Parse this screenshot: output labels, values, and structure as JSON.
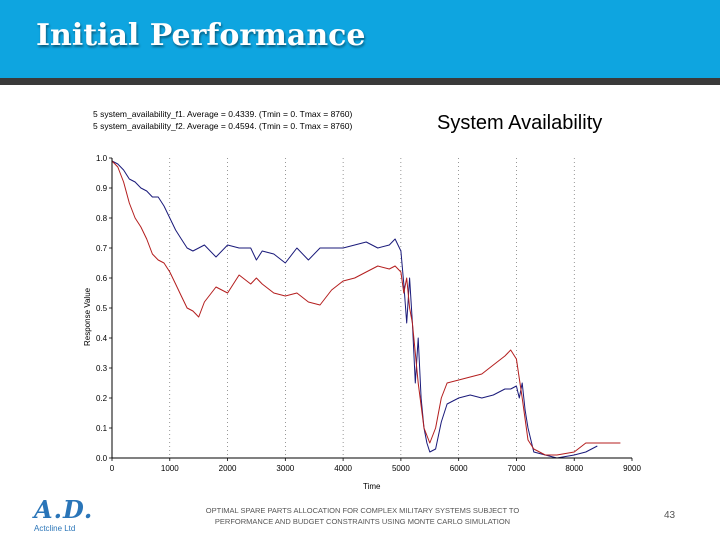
{
  "slide": {
    "title": "Initial Performance",
    "footer_line1": "OPTIMAL SPARE PARTS ALLOCATION FOR COMPLEX MILITARY SYSTEMS SUBJECT TO",
    "footer_line2": "PERFORMANCE AND BUDGET CONSTRAINTS USING MONTE CARLO SIMULATION",
    "page_number": "43",
    "logo_mark": "A.D.",
    "logo_sub": "Actcline Ltd"
  },
  "colors": {
    "header": "#0ea5e0",
    "series1": "#1a1a7a",
    "series2": "#b41e1e"
  },
  "chart_data": {
    "type": "line",
    "title": "System Availability",
    "xlabel": "Time",
    "ylabel": "Response Value",
    "xlim": [
      0,
      9000
    ],
    "ylim": [
      0,
      1.0
    ],
    "xticks": [
      0,
      1000,
      2000,
      3000,
      4000,
      5000,
      6000,
      7000,
      8000,
      9000
    ],
    "yticks": [
      0.0,
      0.1,
      0.2,
      0.3,
      0.4,
      0.5,
      0.6,
      0.7,
      0.8,
      0.9,
      1.0
    ],
    "legend": [
      "5 system_availability_f1. Average = 0.4339. (Tmin = 0. Tmax = 8760)",
      "5 system_availability_f2. Average = 0.4594. (Tmin = 0. Tmax = 8760)"
    ],
    "series": [
      {
        "name": "system_availability_f1",
        "color": "#1a1a7a",
        "x": [
          0,
          100,
          200,
          300,
          400,
          500,
          600,
          700,
          800,
          900,
          1000,
          1100,
          1200,
          1300,
          1400,
          1500,
          1600,
          1800,
          2000,
          2200,
          2400,
          2500,
          2600,
          2800,
          3000,
          3200,
          3400,
          3600,
          3800,
          4000,
          4200,
          4400,
          4600,
          4800,
          4900,
          5000,
          5050,
          5100,
          5150,
          5200,
          5250,
          5300,
          5350,
          5400,
          5450,
          5500,
          5600,
          5700,
          5800,
          6000,
          6200,
          6400,
          6600,
          6800,
          6900,
          7000,
          7050,
          7100,
          7150,
          7200,
          7300,
          7500,
          7700,
          8000,
          8200,
          8400
        ],
        "values": [
          0.99,
          0.98,
          0.96,
          0.93,
          0.92,
          0.9,
          0.89,
          0.87,
          0.87,
          0.84,
          0.8,
          0.76,
          0.73,
          0.7,
          0.69,
          0.7,
          0.71,
          0.67,
          0.71,
          0.7,
          0.7,
          0.66,
          0.69,
          0.68,
          0.65,
          0.7,
          0.66,
          0.7,
          0.7,
          0.7,
          0.71,
          0.72,
          0.7,
          0.71,
          0.73,
          0.69,
          0.58,
          0.45,
          0.6,
          0.45,
          0.25,
          0.4,
          0.2,
          0.1,
          0.05,
          0.02,
          0.03,
          0.12,
          0.18,
          0.2,
          0.21,
          0.2,
          0.21,
          0.23,
          0.23,
          0.24,
          0.2,
          0.25,
          0.16,
          0.1,
          0.02,
          0.01,
          0.0,
          0.01,
          0.02,
          0.04
        ]
      },
      {
        "name": "system_availability_f2",
        "color": "#b41e1e",
        "x": [
          0,
          100,
          200,
          300,
          400,
          500,
          600,
          700,
          800,
          900,
          1000,
          1100,
          1200,
          1300,
          1400,
          1500,
          1600,
          1800,
          2000,
          2200,
          2400,
          2500,
          2600,
          2800,
          3000,
          3200,
          3400,
          3600,
          3800,
          4000,
          4200,
          4400,
          4600,
          4800,
          4900,
          5000,
          5050,
          5100,
          5150,
          5200,
          5300,
          5400,
          5500,
          5600,
          5700,
          5800,
          6000,
          6200,
          6400,
          6600,
          6800,
          6900,
          7000,
          7100,
          7200,
          7300,
          7500,
          7700,
          8000,
          8200,
          8400,
          8600,
          8800
        ],
        "values": [
          0.99,
          0.97,
          0.92,
          0.85,
          0.8,
          0.77,
          0.73,
          0.68,
          0.66,
          0.65,
          0.62,
          0.58,
          0.54,
          0.5,
          0.49,
          0.47,
          0.52,
          0.57,
          0.55,
          0.61,
          0.58,
          0.6,
          0.58,
          0.55,
          0.54,
          0.55,
          0.52,
          0.51,
          0.56,
          0.59,
          0.6,
          0.62,
          0.64,
          0.63,
          0.64,
          0.62,
          0.55,
          0.6,
          0.5,
          0.45,
          0.25,
          0.1,
          0.05,
          0.1,
          0.2,
          0.25,
          0.26,
          0.27,
          0.28,
          0.31,
          0.34,
          0.36,
          0.33,
          0.2,
          0.06,
          0.03,
          0.01,
          0.01,
          0.02,
          0.05,
          0.05,
          0.05,
          0.05
        ]
      }
    ]
  }
}
